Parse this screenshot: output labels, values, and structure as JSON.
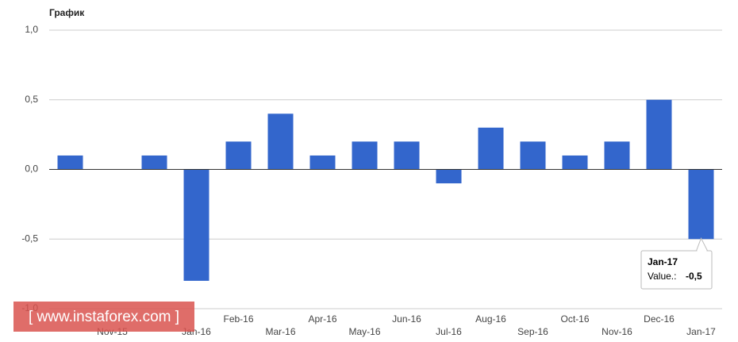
{
  "chart_data": {
    "type": "bar",
    "title": "График",
    "categories": [
      null,
      "Nov-15",
      null,
      "Jan-16",
      "Feb-16",
      "Mar-16",
      "Apr-16",
      "May-16",
      "Jun-16",
      "Jul-16",
      "Aug-16",
      "Sep-16",
      "Oct-16",
      "Nov-16",
      "Dec-16",
      "Jan-17"
    ],
    "values": [
      0.1,
      0,
      0.1,
      -0.8,
      0.2,
      0.4,
      0.1,
      0.2,
      0.2,
      -0.1,
      0.3,
      0.2,
      0.1,
      0.2,
      0.5,
      -0.5
    ],
    "color": "#3366cc",
    "ylim": [
      -1,
      1
    ],
    "yticks": [
      {
        "value": -1,
        "label": "-1,0"
      },
      {
        "value": -0.5,
        "label": "-0,5"
      },
      {
        "value": 0,
        "label": "0,0"
      },
      {
        "value": 0.5,
        "label": "0,5"
      },
      {
        "value": 1,
        "label": "1,0"
      }
    ],
    "grid": true,
    "tooltip": {
      "label": "Value.:",
      "value_label": "-0,5"
    }
  },
  "watermark": "[ www.instaforex.com ]"
}
